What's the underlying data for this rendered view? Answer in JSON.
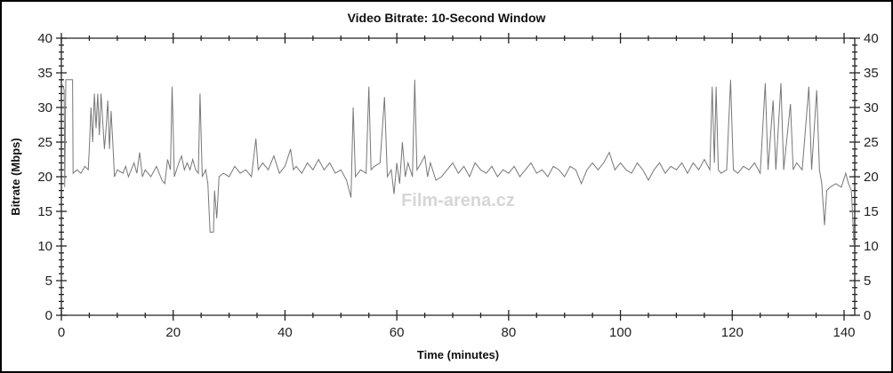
{
  "chart_data": {
    "type": "line",
    "title": "Video Bitrate: 10-Second Window",
    "xlabel": "Time (minutes)",
    "ylabel": "Bitrate (Mbps)",
    "xlim": [
      0,
      142
    ],
    "ylim": [
      0,
      40
    ],
    "xticks": [
      0,
      20,
      40,
      60,
      80,
      100,
      120,
      140
    ],
    "yticks": [
      0,
      5,
      10,
      15,
      20,
      25,
      30,
      35,
      40
    ],
    "right_axis_ticks": [
      0,
      5,
      10,
      15,
      20,
      25,
      30,
      35,
      40
    ],
    "grid": false,
    "line_color": "#777777",
    "watermark": "Film-arena.cz",
    "points": [
      [
        0,
        33.5
      ],
      [
        0.3,
        33
      ],
      [
        0.5,
        32.5
      ],
      [
        0.6,
        18.5
      ],
      [
        0.8,
        34
      ],
      [
        1.5,
        34
      ],
      [
        2,
        34
      ],
      [
        2.1,
        20.5
      ],
      [
        2.8,
        21
      ],
      [
        3.5,
        20.5
      ],
      [
        4.2,
        21.5
      ],
      [
        4.8,
        21
      ],
      [
        5,
        24
      ],
      [
        5.3,
        30
      ],
      [
        5.6,
        25
      ],
      [
        5.9,
        32
      ],
      [
        6.2,
        27
      ],
      [
        6.5,
        32
      ],
      [
        6.8,
        26
      ],
      [
        7.1,
        32
      ],
      [
        7.4,
        28
      ],
      [
        7.7,
        24
      ],
      [
        8,
        27
      ],
      [
        8.3,
        31
      ],
      [
        8.6,
        24
      ],
      [
        8.9,
        29.5
      ],
      [
        9.2,
        25
      ],
      [
        9.5,
        20
      ],
      [
        10,
        21
      ],
      [
        11,
        20.5
      ],
      [
        11.5,
        21.5
      ],
      [
        12,
        20
      ],
      [
        13,
        22
      ],
      [
        13.5,
        20.5
      ],
      [
        14,
        23.5
      ],
      [
        14.5,
        20
      ],
      [
        15,
        21
      ],
      [
        16,
        20
      ],
      [
        17,
        21.5
      ],
      [
        18,
        19.5
      ],
      [
        18.5,
        19
      ],
      [
        19,
        22.5
      ],
      [
        19.5,
        21
      ],
      [
        19.8,
        33
      ],
      [
        20.2,
        20
      ],
      [
        21,
        22
      ],
      [
        21.5,
        23
      ],
      [
        22,
        21
      ],
      [
        22.5,
        22
      ],
      [
        23,
        21
      ],
      [
        23.5,
        22.5
      ],
      [
        24,
        21
      ],
      [
        24.5,
        20.5
      ],
      [
        24.8,
        32
      ],
      [
        25.2,
        20
      ],
      [
        25.8,
        21
      ],
      [
        26.2,
        19
      ],
      [
        26.6,
        12
      ],
      [
        27.2,
        12
      ],
      [
        27.4,
        18
      ],
      [
        27.8,
        14
      ],
      [
        28.2,
        20
      ],
      [
        29,
        20.5
      ],
      [
        30,
        20
      ],
      [
        31,
        21.5
      ],
      [
        32,
        20.5
      ],
      [
        33,
        21
      ],
      [
        34,
        20
      ],
      [
        34.8,
        25.5
      ],
      [
        35.2,
        21
      ],
      [
        36,
        22
      ],
      [
        37,
        21
      ],
      [
        38,
        23
      ],
      [
        39,
        20.5
      ],
      [
        40,
        21.5
      ],
      [
        41,
        24
      ],
      [
        41.5,
        21
      ],
      [
        42,
        21.5
      ],
      [
        43,
        20.5
      ],
      [
        44,
        22
      ],
      [
        45,
        21
      ],
      [
        46,
        22.5
      ],
      [
        47,
        21
      ],
      [
        48,
        22
      ],
      [
        49,
        20.5
      ],
      [
        50,
        21
      ],
      [
        51,
        19.5
      ],
      [
        51.8,
        17
      ],
      [
        52.2,
        30
      ],
      [
        52.6,
        20
      ],
      [
        53.5,
        21
      ],
      [
        54.5,
        20.5
      ],
      [
        55,
        33
      ],
      [
        55.4,
        21
      ],
      [
        56,
        21.5
      ],
      [
        57,
        22
      ],
      [
        57.8,
        31.5
      ],
      [
        58.3,
        20
      ],
      [
        59,
        21
      ],
      [
        59.5,
        17.5
      ],
      [
        60,
        22
      ],
      [
        60.5,
        19
      ],
      [
        61,
        25
      ],
      [
        61.5,
        20
      ],
      [
        62,
        22
      ],
      [
        62.8,
        20
      ],
      [
        63.2,
        34
      ],
      [
        63.6,
        21
      ],
      [
        64,
        21.5
      ],
      [
        65,
        23
      ],
      [
        65.5,
        20
      ],
      [
        66,
        22
      ],
      [
        67,
        19.5
      ],
      [
        68,
        20
      ],
      [
        69,
        21
      ],
      [
        70,
        22
      ],
      [
        71,
        20.5
      ],
      [
        72,
        21.5
      ],
      [
        73,
        20
      ],
      [
        74,
        22
      ],
      [
        75,
        21
      ],
      [
        76,
        20.5
      ],
      [
        77,
        21.5
      ],
      [
        78,
        20
      ],
      [
        79,
        21
      ],
      [
        80,
        20.5
      ],
      [
        81,
        21.5
      ],
      [
        82,
        20
      ],
      [
        83,
        21
      ],
      [
        84,
        22
      ],
      [
        85,
        20.5
      ],
      [
        86,
        21
      ],
      [
        87,
        20
      ],
      [
        88,
        21.5
      ],
      [
        89,
        21
      ],
      [
        90,
        20
      ],
      [
        91,
        21.5
      ],
      [
        92,
        21
      ],
      [
        93,
        19
      ],
      [
        94,
        21
      ],
      [
        95,
        22
      ],
      [
        96,
        21
      ],
      [
        97,
        22
      ],
      [
        98,
        23.5
      ],
      [
        99,
        21
      ],
      [
        100,
        22
      ],
      [
        101,
        21
      ],
      [
        102,
        20.5
      ],
      [
        103,
        22
      ],
      [
        104,
        21
      ],
      [
        105,
        19.5
      ],
      [
        106,
        21
      ],
      [
        107,
        22
      ],
      [
        108,
        20.5
      ],
      [
        109,
        21.5
      ],
      [
        110,
        21
      ],
      [
        111,
        22
      ],
      [
        112,
        20.5
      ],
      [
        113,
        22
      ],
      [
        114,
        21
      ],
      [
        115,
        22.5
      ],
      [
        116,
        21
      ],
      [
        116.4,
        33
      ],
      [
        116.8,
        22
      ],
      [
        117.1,
        33
      ],
      [
        117.5,
        21
      ],
      [
        118,
        20.5
      ],
      [
        119,
        21
      ],
      [
        119.7,
        34
      ],
      [
        120.2,
        21
      ],
      [
        121,
        20.5
      ],
      [
        122,
        21.5
      ],
      [
        123,
        21
      ],
      [
        124,
        22
      ],
      [
        125,
        20.5
      ],
      [
        125.9,
        33.5
      ],
      [
        126.4,
        21
      ],
      [
        127.3,
        31
      ],
      [
        127.8,
        21
      ],
      [
        128.7,
        33.5
      ],
      [
        129.2,
        21
      ],
      [
        130.4,
        30.5
      ],
      [
        130.9,
        21
      ],
      [
        131.5,
        22
      ],
      [
        132.5,
        21
      ],
      [
        133.7,
        33
      ],
      [
        134.2,
        21
      ],
      [
        135.1,
        32.5
      ],
      [
        135.6,
        21
      ],
      [
        136,
        19
      ],
      [
        136.5,
        13
      ],
      [
        136.9,
        18
      ],
      [
        137.5,
        18.5
      ],
      [
        138.5,
        19
      ],
      [
        139.5,
        18.5
      ],
      [
        140.3,
        20.5
      ],
      [
        140.8,
        19
      ],
      [
        141.3,
        18
      ],
      [
        141.8,
        10
      ]
    ]
  }
}
